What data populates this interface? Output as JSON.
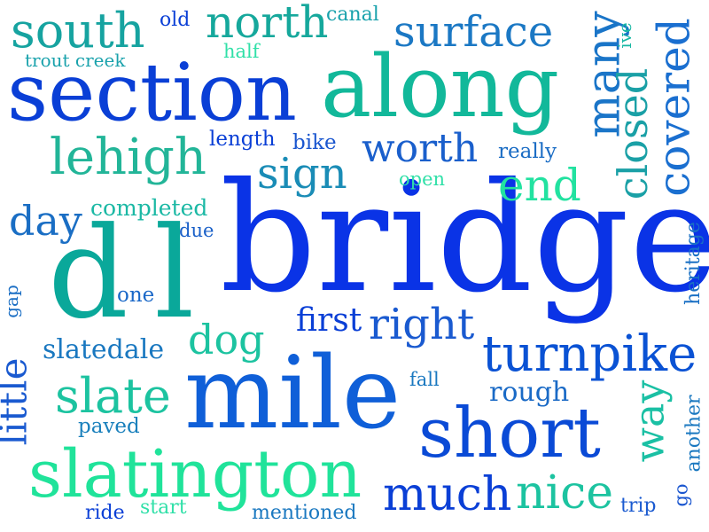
{
  "words": [
    {
      "text": "bridge",
      "color": "#0a33e6"
    },
    {
      "text": "mile",
      "color": "#0f5fd8"
    },
    {
      "text": "d",
      "color": "#0aa89a"
    },
    {
      "text": "l",
      "color": "#0aa89a"
    },
    {
      "text": "section",
      "color": "#0a3fd6"
    },
    {
      "text": "along",
      "color": "#12b89a"
    },
    {
      "text": "short",
      "color": "#0a4ad6"
    },
    {
      "text": "slatington",
      "color": "#20e39a"
    },
    {
      "text": "covered",
      "color": "#1a6fd0"
    },
    {
      "text": "many",
      "color": "#1a75c8"
    },
    {
      "text": "closed",
      "color": "#1aa0a6"
    },
    {
      "text": "turnpike",
      "color": "#0a52d4"
    },
    {
      "text": "south",
      "color": "#16a3a0"
    },
    {
      "text": "north",
      "color": "#16a89c"
    },
    {
      "text": "surface",
      "color": "#1b78c4"
    },
    {
      "text": "lehigh",
      "color": "#22b598"
    },
    {
      "text": "worth",
      "color": "#1a5fcc"
    },
    {
      "text": "sign",
      "color": "#1a8cb6"
    },
    {
      "text": "end",
      "color": "#22e2a0"
    },
    {
      "text": "slate",
      "color": "#1cc3a0"
    },
    {
      "text": "much",
      "color": "#0a3fd6"
    },
    {
      "text": "nice",
      "color": "#1cc3a0"
    },
    {
      "text": "way",
      "color": "#1ac0a4"
    },
    {
      "text": "dog",
      "color": "#1cc3a0"
    },
    {
      "text": "right",
      "color": "#1a5ad0"
    },
    {
      "text": "little",
      "color": "#1a5ad0"
    },
    {
      "text": "day",
      "color": "#1a6ec4"
    },
    {
      "text": "first",
      "color": "#0a3fd6"
    },
    {
      "text": "slatedale",
      "color": "#1a78c0"
    },
    {
      "text": "rough",
      "color": "#1a6ac6"
    },
    {
      "text": "completed",
      "color": "#1ab8a4"
    },
    {
      "text": "length",
      "color": "#0a3fd6"
    },
    {
      "text": "bike",
      "color": "#1a56cf"
    },
    {
      "text": "really",
      "color": "#1a6cc4"
    },
    {
      "text": "open",
      "color": "#30e0a8"
    },
    {
      "text": "due",
      "color": "#1a60c8"
    },
    {
      "text": "one",
      "color": "#1a68c8"
    },
    {
      "text": "fall",
      "color": "#1a78c0"
    },
    {
      "text": "paved",
      "color": "#1a80bc"
    },
    {
      "text": "heritage",
      "color": "#1a70c4"
    },
    {
      "text": "another",
      "color": "#1a78c0"
    },
    {
      "text": "gap",
      "color": "#1a6ec4"
    },
    {
      "text": "trout creek",
      "color": "#1aa2ac"
    },
    {
      "text": "half",
      "color": "#30e0a8"
    },
    {
      "text": "canal",
      "color": "#1aa2ac"
    },
    {
      "text": "old",
      "color": "#0a3fd6"
    },
    {
      "text": "ive",
      "color": "#1ab8a4"
    },
    {
      "text": "ride",
      "color": "#0a3fd6"
    },
    {
      "text": "start",
      "color": "#30e0a8"
    },
    {
      "text": "mentioned",
      "color": "#1a78c0"
    },
    {
      "text": "trip",
      "color": "#1a5ad0"
    },
    {
      "text": "go",
      "color": "#1a56cf"
    }
  ]
}
